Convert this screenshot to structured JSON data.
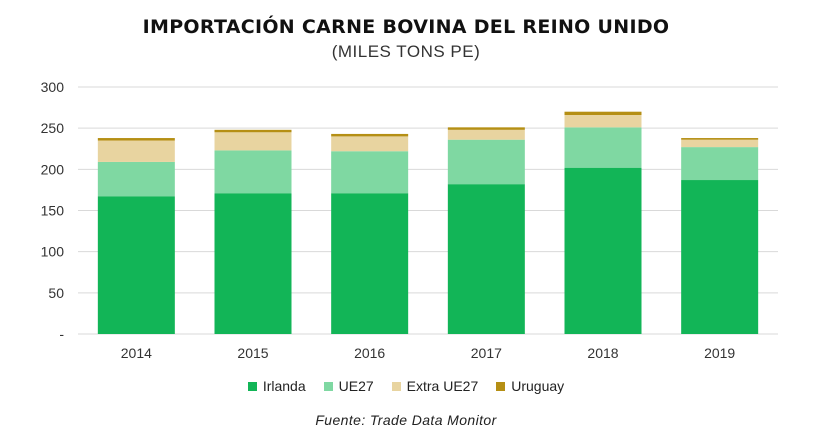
{
  "chart_data": {
    "type": "bar",
    "stacked": true,
    "title": "IMPORTACIÓN CARNE BOVINA DEL REINO UNIDO",
    "subtitle": "(MILES TONS PE)",
    "categories": [
      "2014",
      "2015",
      "2016",
      "2017",
      "2018",
      "2019"
    ],
    "series": [
      {
        "name": "Irlanda",
        "color": "#12b557",
        "values": [
          167,
          171,
          171,
          182,
          202,
          187
        ]
      },
      {
        "name": "UE27",
        "color": "#7fd8a2",
        "values": [
          42,
          52,
          51,
          54,
          49,
          40
        ]
      },
      {
        "name": "Extra UE27",
        "color": "#e8d4a0",
        "values": [
          26,
          22,
          18,
          12,
          15,
          9
        ]
      },
      {
        "name": "Uruguay",
        "color": "#b58f14",
        "values": [
          3,
          3,
          3,
          3,
          4,
          2
        ]
      }
    ],
    "yticks": [
      "-",
      "50",
      "100",
      "150",
      "200",
      "250",
      "300"
    ],
    "ylim": [
      0,
      300
    ],
    "grid": true,
    "legend_position": "bottom",
    "source": "Fuente: Trade Data Monitor"
  }
}
